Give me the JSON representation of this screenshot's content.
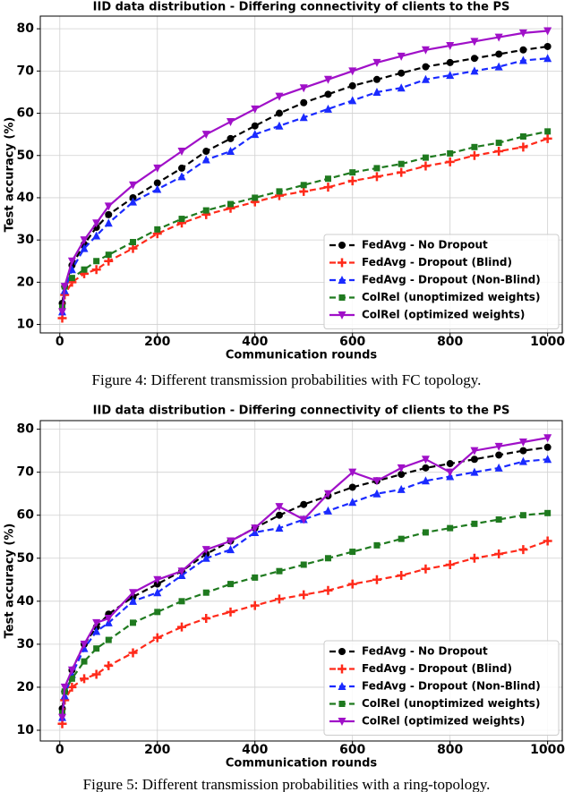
{
  "chart_data": [
    {
      "type": "line",
      "title": "IID data distribution - Differing connectivity of clients to the PS",
      "x_label": "Communication rounds",
      "y_label": "Test accuracy (%)",
      "caption": "Figure 4: Different transmission probabilities with FC topology.",
      "x": [
        5,
        10,
        25,
        50,
        75,
        100,
        150,
        200,
        250,
        300,
        350,
        400,
        450,
        500,
        550,
        600,
        650,
        700,
        750,
        800,
        850,
        900,
        950,
        1000
      ],
      "xlim": [
        -40,
        1030
      ],
      "ylim": [
        8,
        83
      ],
      "xticks": [
        0,
        200,
        400,
        600,
        800,
        1000
      ],
      "yticks": [
        10,
        20,
        30,
        40,
        50,
        60,
        70,
        80
      ],
      "grid": true,
      "legend": "lower right",
      "series": [
        {
          "name": "FedAvg - No Dropout",
          "color": "#000000",
          "marker": "circle",
          "linestyle": "dashed",
          "values": [
            15,
            19,
            24,
            29,
            33,
            36,
            40,
            43.5,
            47,
            51,
            54,
            57,
            60,
            62.5,
            64.5,
            66.5,
            68,
            69.5,
            71,
            72,
            73,
            74,
            75,
            75.8
          ]
        },
        {
          "name": "FedAvg - Dropout (Blind)",
          "color": "#ff2a1a",
          "marker": "plus",
          "linestyle": "dashed",
          "values": [
            11.5,
            17,
            20,
            22,
            23,
            25,
            28,
            31.5,
            34,
            36,
            37.5,
            39,
            40.5,
            41.5,
            42.5,
            44,
            45,
            46,
            47.5,
            48.5,
            50,
            51,
            52,
            54
          ]
        },
        {
          "name": "FedAvg - Dropout (Non-Blind)",
          "color": "#1a2aff",
          "marker": "triangle",
          "linestyle": "dashed",
          "values": [
            13,
            18,
            23,
            28,
            31,
            34,
            39,
            42,
            45,
            49,
            51,
            55,
            57,
            59,
            61,
            63,
            65,
            66,
            68,
            69,
            70,
            71,
            72.5,
            73
          ]
        },
        {
          "name": "ColRel (unoptimized weights)",
          "color": "#1f7a1f",
          "marker": "square",
          "linestyle": "dashed",
          "values": [
            14,
            19,
            21,
            23,
            25,
            26.5,
            29.5,
            32.5,
            35,
            37,
            38.5,
            40,
            41.5,
            43,
            44.5,
            46,
            47,
            48,
            49.5,
            50.5,
            52,
            53,
            54.5,
            55.7
          ]
        },
        {
          "name": "ColRel (optimized weights)",
          "color": "#a010c8",
          "marker": "triangle-down",
          "linestyle": "solid",
          "values": [
            13,
            19,
            25,
            30,
            34,
            38,
            43,
            47,
            51,
            55,
            58,
            61,
            64,
            66,
            68,
            70,
            72,
            73.5,
            75,
            76,
            77,
            78,
            79,
            79.5
          ]
        }
      ]
    },
    {
      "type": "line",
      "title": "IID data distribution - Differing connectivity of clients to the PS",
      "x_label": "Communication rounds",
      "y_label": "Test accuracy (%)",
      "caption": "Figure 5: Different transmission probabilities with a ring-topology.",
      "x": [
        5,
        10,
        25,
        50,
        75,
        100,
        150,
        200,
        250,
        300,
        350,
        400,
        450,
        500,
        550,
        600,
        650,
        700,
        750,
        800,
        850,
        900,
        950,
        1000
      ],
      "xlim": [
        -40,
        1030
      ],
      "ylim": [
        7.5,
        82
      ],
      "xticks": [
        0,
        200,
        400,
        600,
        800,
        1000
      ],
      "yticks": [
        10,
        20,
        30,
        40,
        50,
        60,
        70,
        80
      ],
      "grid": true,
      "legend": "lower right",
      "series": [
        {
          "name": "FedAvg - No Dropout",
          "color": "#000000",
          "marker": "circle",
          "linestyle": "dashed",
          "values": [
            15,
            19,
            24,
            30,
            34,
            37,
            41,
            44,
            47,
            51,
            54,
            57,
            60,
            62.5,
            64.5,
            66.5,
            68,
            69.5,
            71,
            72,
            73,
            74,
            75,
            75.8
          ]
        },
        {
          "name": "FedAvg - Dropout (Blind)",
          "color": "#ff2a1a",
          "marker": "plus",
          "linestyle": "dashed",
          "values": [
            11.5,
            17,
            20,
            22,
            23,
            25,
            28,
            31.5,
            34,
            36,
            37.5,
            39,
            40.5,
            41.5,
            42.5,
            44,
            45,
            46,
            47.5,
            48.5,
            50,
            51,
            52,
            54
          ]
        },
        {
          "name": "FedAvg - Dropout (Non-Blind)",
          "color": "#1a2aff",
          "marker": "triangle",
          "linestyle": "dashed",
          "values": [
            13,
            18,
            23,
            29,
            33,
            35,
            40,
            42,
            46,
            50,
            52,
            56,
            57,
            59,
            61,
            63,
            65,
            66,
            68,
            69,
            70,
            71,
            72.5,
            73
          ]
        },
        {
          "name": "ColRel (unoptimized weights)",
          "color": "#1f7a1f",
          "marker": "square",
          "linestyle": "dashed",
          "values": [
            14,
            19,
            22,
            26,
            29,
            31,
            35,
            37.5,
            40,
            42,
            44,
            45.5,
            47,
            48.5,
            50,
            51.5,
            53,
            54.5,
            56,
            57,
            58,
            59,
            60,
            60.5
          ]
        },
        {
          "name": "ColRel (optimized weights)",
          "color": "#a010c8",
          "marker": "triangle-down",
          "linestyle": "solid",
          "values": [
            13,
            20,
            24,
            30,
            35,
            36,
            42,
            45,
            47,
            52,
            54,
            57,
            62,
            59,
            65,
            70,
            68,
            71,
            73,
            70,
            75,
            76,
            77,
            78
          ]
        }
      ]
    }
  ]
}
